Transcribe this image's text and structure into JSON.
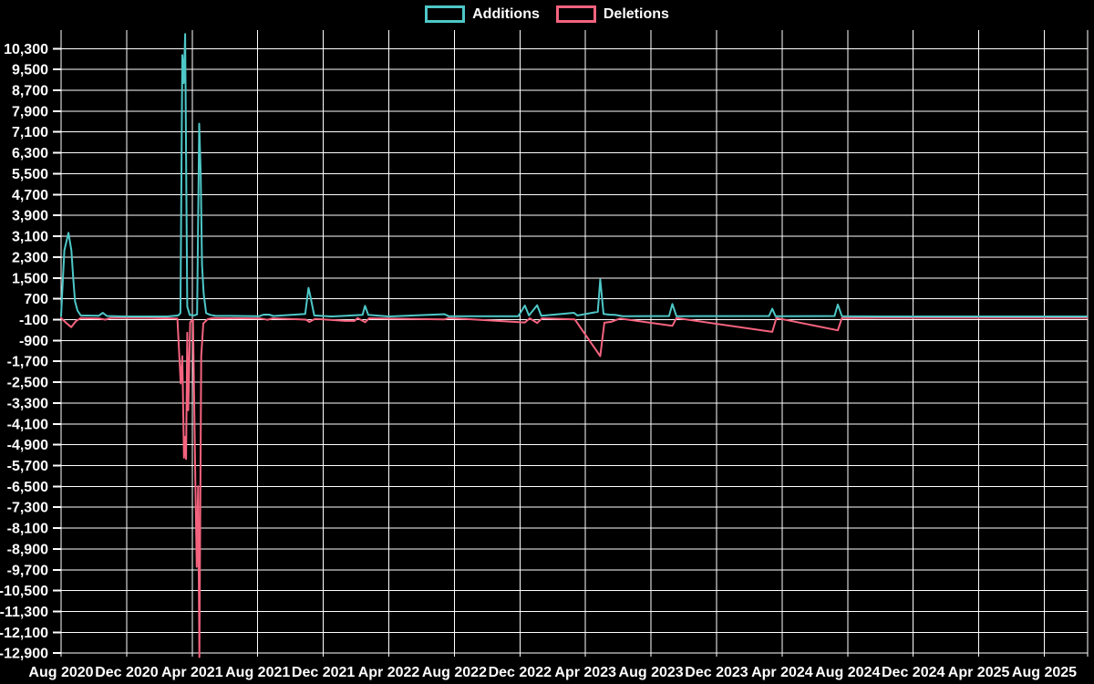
{
  "legend": {
    "items": [
      {
        "label": "Additions",
        "color": "#4ec7c7"
      },
      {
        "label": "Deletions",
        "color": "#f4637e"
      }
    ]
  },
  "chart_data": {
    "type": "line",
    "title": "",
    "xlabel": "",
    "ylabel": "",
    "grid": "on",
    "legend_position": "top-center",
    "background_color": "#000000",
    "grid_color": "#ffffff",
    "text_color": "#ffffff",
    "x_axis": {
      "unit": "months_since_aug_2020",
      "tick_interval_months": 4,
      "tick_labels": [
        "Aug 2020",
        "Dec 2020",
        "Apr 2021",
        "Aug 2021",
        "Dec 2021",
        "Apr 2022",
        "Aug 2022",
        "Dec 2022",
        "Apr 2023",
        "Aug 2023",
        "Dec 2023",
        "Apr 2024",
        "Aug 2024",
        "Dec 2024",
        "Apr 2025",
        "Aug 2025"
      ]
    },
    "y_axis": {
      "tick_step": 800,
      "labeled_range": [
        -12900,
        10300
      ],
      "tick_labels": [
        "10,300",
        "9,500",
        "8,700",
        "7,900",
        "7,100",
        "6,300",
        "5,500",
        "4,700",
        "3,900",
        "3,100",
        "2,300",
        "1,500",
        "700",
        "-100",
        "-900",
        "-1,700",
        "-2,500",
        "-3,300",
        "-4,100",
        "-4,900",
        "-5,700",
        "-6,500",
        "-7,300",
        "-8,100",
        "-8,900",
        "-9,700",
        "-10,500",
        "-11,300",
        "-12,100",
        "-12,900"
      ]
    },
    "series": [
      {
        "name": "Additions",
        "color": "#4ec7c7",
        "points": [
          [
            0,
            40
          ],
          [
            0.08,
            1050
          ],
          [
            0.2,
            2560
          ],
          [
            0.45,
            3230
          ],
          [
            0.63,
            2560
          ],
          [
            0.74,
            1500
          ],
          [
            0.85,
            600
          ],
          [
            1.0,
            250
          ],
          [
            1.2,
            60
          ],
          [
            2.3,
            50
          ],
          [
            2.55,
            160
          ],
          [
            2.8,
            40
          ],
          [
            4.0,
            20
          ],
          [
            6.5,
            20
          ],
          [
            7.15,
            60
          ],
          [
            7.28,
            150
          ],
          [
            7.4,
            10050
          ],
          [
            7.48,
            8980
          ],
          [
            7.57,
            10860
          ],
          [
            7.7,
            400
          ],
          [
            7.85,
            80
          ],
          [
            8.1,
            60
          ],
          [
            8.3,
            100
          ],
          [
            8.43,
            7420
          ],
          [
            8.52,
            5600
          ],
          [
            8.6,
            2000
          ],
          [
            8.7,
            900
          ],
          [
            8.85,
            150
          ],
          [
            9.1,
            80
          ],
          [
            9.4,
            50
          ],
          [
            12.1,
            30
          ],
          [
            12.35,
            90
          ],
          [
            12.7,
            90
          ],
          [
            12.95,
            40
          ],
          [
            14.9,
            120
          ],
          [
            15.1,
            1120
          ],
          [
            15.22,
            770
          ],
          [
            15.45,
            60
          ],
          [
            16.5,
            20
          ],
          [
            18.4,
            80
          ],
          [
            18.55,
            430
          ],
          [
            18.75,
            80
          ],
          [
            20,
            20
          ],
          [
            23.4,
            110
          ],
          [
            23.65,
            30
          ],
          [
            27.9,
            30
          ],
          [
            28.3,
            440
          ],
          [
            28.55,
            60
          ],
          [
            29.05,
            450
          ],
          [
            29.3,
            50
          ],
          [
            31.3,
            160
          ],
          [
            31.5,
            60
          ],
          [
            32.75,
            200
          ],
          [
            32.9,
            1440
          ],
          [
            33.1,
            120
          ],
          [
            33.45,
            90
          ],
          [
            33.8,
            80
          ],
          [
            34.3,
            30
          ],
          [
            37.1,
            40
          ],
          [
            37.3,
            500
          ],
          [
            37.55,
            30
          ],
          [
            43.2,
            40
          ],
          [
            43.4,
            320
          ],
          [
            43.6,
            30
          ],
          [
            47.2,
            40
          ],
          [
            47.4,
            480
          ],
          [
            47.65,
            30
          ],
          [
            50,
            20
          ],
          [
            62.6,
            20
          ]
        ]
      },
      {
        "name": "Deletions",
        "color": "#f4637e",
        "points": [
          [
            0,
            -40
          ],
          [
            0.3,
            -220
          ],
          [
            0.62,
            -390
          ],
          [
            0.9,
            -160
          ],
          [
            1.2,
            -40
          ],
          [
            2.35,
            -60
          ],
          [
            2.7,
            -100
          ],
          [
            3.0,
            -40
          ],
          [
            5.0,
            -30
          ],
          [
            7.1,
            -60
          ],
          [
            7.3,
            -2550
          ],
          [
            7.4,
            -1500
          ],
          [
            7.5,
            -5400
          ],
          [
            7.57,
            -4600
          ],
          [
            7.63,
            -5450
          ],
          [
            7.7,
            -600
          ],
          [
            7.76,
            -3580
          ],
          [
            7.88,
            -200
          ],
          [
            8.05,
            -100
          ],
          [
            8.2,
            -6570
          ],
          [
            8.28,
            -9590
          ],
          [
            8.36,
            -6500
          ],
          [
            8.44,
            -13050
          ],
          [
            8.55,
            -1500
          ],
          [
            8.68,
            -250
          ],
          [
            8.95,
            -80
          ],
          [
            9.3,
            -40
          ],
          [
            12.2,
            -60
          ],
          [
            12.6,
            -110
          ],
          [
            12.9,
            -50
          ],
          [
            14.95,
            -100
          ],
          [
            15.15,
            -190
          ],
          [
            15.5,
            -70
          ],
          [
            17.35,
            -150
          ],
          [
            17.9,
            -150
          ],
          [
            18.1,
            -40
          ],
          [
            18.55,
            -200
          ],
          [
            18.8,
            -50
          ],
          [
            23.4,
            -90
          ],
          [
            23.65,
            -40
          ],
          [
            28.3,
            -210
          ],
          [
            28.6,
            -50
          ],
          [
            29.05,
            -230
          ],
          [
            29.35,
            -50
          ],
          [
            31.35,
            -90
          ],
          [
            32.9,
            -1500
          ],
          [
            33.15,
            -220
          ],
          [
            33.6,
            -180
          ],
          [
            34.1,
            -60
          ],
          [
            37.3,
            -340
          ],
          [
            37.55,
            -40
          ],
          [
            43.4,
            -570
          ],
          [
            43.65,
            -40
          ],
          [
            47.4,
            -510
          ],
          [
            47.65,
            -40
          ],
          [
            50,
            -30
          ],
          [
            62.6,
            -30
          ]
        ]
      }
    ]
  }
}
